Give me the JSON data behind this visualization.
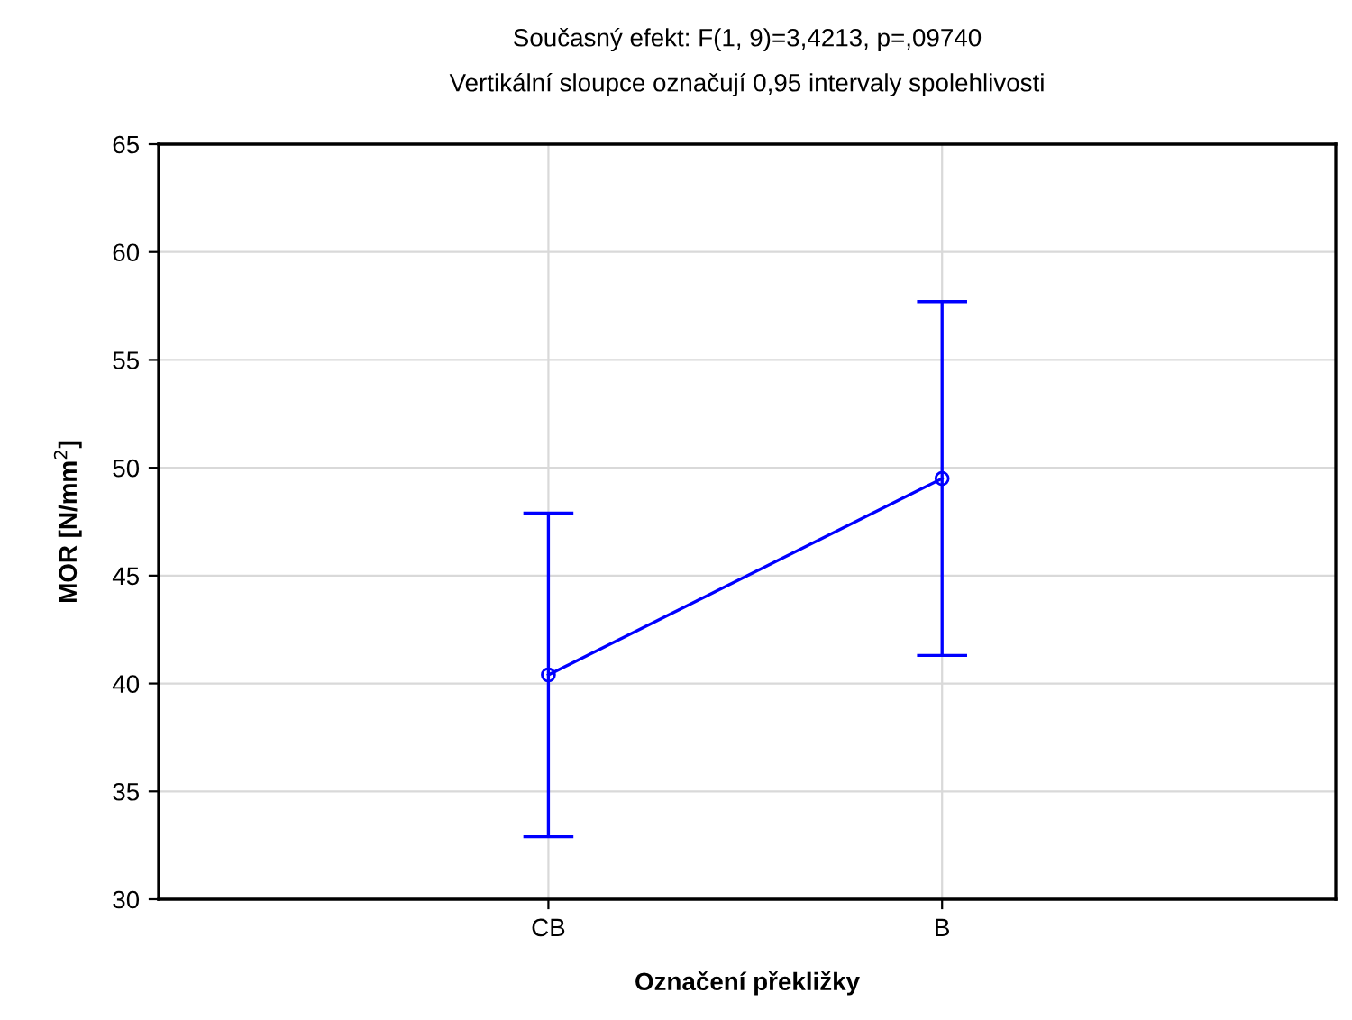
{
  "chart_data": {
    "type": "line",
    "title": "Současný efekt: F(1, 9)=3,4213, p=,09740",
    "subtitle": "Vertikální sloupce označují 0,95 intervaly spolehlivosti",
    "xlabel": "Označení překližky",
    "ylabel": "MOR [N/mm$^{2}$]",
    "categories": [
      "CB",
      "B"
    ],
    "series": [
      {
        "color": "#0000ff",
        "values": [
          40.4,
          49.5
        ],
        "errors": [
          [
            32.9,
            47.9
          ],
          [
            41.3,
            57.7
          ]
        ]
      }
    ],
    "ylim": [
      30,
      65
    ],
    "yticks": [
      30,
      35,
      40,
      45,
      50,
      55,
      60,
      65
    ],
    "grid": true,
    "marker": "circle",
    "line_style": "solid"
  }
}
